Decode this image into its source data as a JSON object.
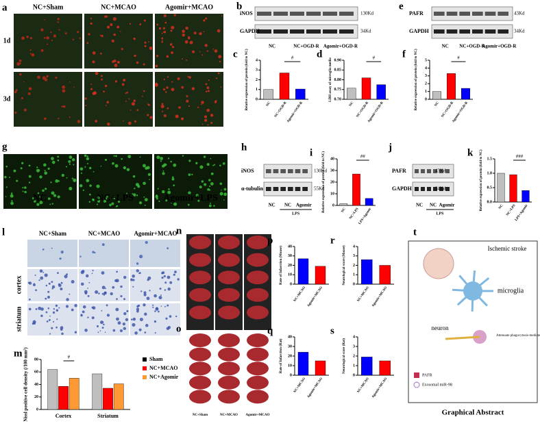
{
  "figure": {
    "a": {
      "letter": "a",
      "columns": [
        "NC+Sham",
        "NC+MCAO",
        "Agomir+MCAO"
      ],
      "rows": [
        "1d",
        "3d"
      ]
    },
    "b": {
      "letter": "b",
      "bands": [
        "iNOS",
        "GAPDH"
      ],
      "sizes": [
        "130Kd",
        "34Kd"
      ],
      "lanes": [
        "NC",
        "NC+OGD-R",
        "Agomir+OGD-R"
      ]
    },
    "e": {
      "letter": "e",
      "bands": [
        "PAFR",
        "GAPDH"
      ],
      "sizes": [
        "43Kd",
        "34Kd"
      ],
      "lanes": [
        "NC",
        "NC+OGD-R",
        "Agomir+OGD-R"
      ]
    },
    "g": {
      "letter": "g",
      "images": [
        "NC",
        "NC+LPS",
        "Agomir+LPS"
      ]
    },
    "h": {
      "letter": "h",
      "bands": [
        "iNOS",
        "α-tubulin"
      ],
      "sizes": [
        "130Kd",
        "55Kd"
      ],
      "lanes": [
        "NC",
        "NC",
        "Agomir"
      ],
      "treatment": "LPS"
    },
    "j": {
      "letter": "j",
      "bands": [
        "PAFR",
        "GAPDH"
      ],
      "sizes": [
        "43Kd",
        "34Kd"
      ],
      "lanes": [
        "NC",
        "NC",
        "Agomir"
      ],
      "treatment": "LPS"
    },
    "l": {
      "letter": "l",
      "columns": [
        "NC+Sham",
        "NC+MCAO",
        "Agomir+MCAO"
      ],
      "rows": [
        "cortex",
        "striatum"
      ]
    },
    "n": {
      "letter": "n",
      "columns": [
        "NC+Sham",
        "NC+MCAO",
        "Agomir+MCAO"
      ]
    },
    "o": {
      "letter": "o",
      "columns": [
        "NC+Sham",
        "NC+MCAO",
        "Agomir+MCAO"
      ]
    },
    "t": {
      "letter": "t",
      "title": "Ischemic stroke",
      "cells": [
        "microglia",
        "neuron"
      ],
      "effect": "Attenuate phagocytosis-mediated neuronal death",
      "legend": [
        "PAFR",
        "Exosomal miR-98"
      ],
      "caption": "Graphical Abstract"
    }
  },
  "chart_data": [
    {
      "label": "c",
      "type": "bar",
      "ylabel": "Relative expression of protein (fold to NC)",
      "categories": [
        "NC",
        "NC+OGD-R",
        "Agomir+OGD-R"
      ],
      "values": [
        1,
        2.7,
        1.05
      ],
      "colors": [
        "#bfbfbf",
        "#ff0000",
        "#0000ff"
      ],
      "ylim": [
        0,
        4
      ],
      "yticks": [
        0,
        1,
        2,
        3,
        4
      ],
      "significance": "#"
    },
    {
      "label": "d",
      "type": "bar",
      "ylabel": "LDH assay of microglia media",
      "categories": [
        "NC",
        "NC+OGD-R",
        "Agomir+OGD-R"
      ],
      "values": [
        0.757,
        0.81,
        0.775
      ],
      "colors": [
        "#bfbfbf",
        "#ff0000",
        "#0000ff"
      ],
      "ylim": [
        0.7,
        0.9
      ],
      "yticks": [
        {
          "value": 0.7,
          "label": "0.70"
        },
        {
          "value": 0.75,
          "label": "0.75"
        },
        {
          "value": 0.8,
          "label": "0.80"
        },
        {
          "value": 0.85,
          "label": "0.85"
        },
        {
          "value": 0.9,
          "label": "0.90"
        }
      ],
      "significance": "#"
    },
    {
      "label": "f",
      "type": "bar",
      "ylabel": "Relative expression of protein (fold to NC)",
      "categories": [
        "NC",
        "NC+OGD-R",
        "Agomir+OGD-R"
      ],
      "values": [
        1,
        3.3,
        1.4
      ],
      "colors": [
        "#bfbfbf",
        "#ff0000",
        "#0000ff"
      ],
      "ylim": [
        0,
        5
      ],
      "yticks": [
        0,
        1,
        2,
        3,
        4,
        5
      ],
      "significance": "#"
    },
    {
      "label": "i",
      "type": "bar",
      "ylabel": "Relative expression of protein (fold to NC)",
      "categories": [
        "NC",
        "NC+LPS",
        "LPS+Agomir"
      ],
      "values": [
        1.5,
        27,
        6
      ],
      "colors": [
        "#bfbfbf",
        "#ff0000",
        "#0000ff"
      ],
      "ylim": [
        0,
        40
      ],
      "yticks": [
        0,
        10,
        20,
        30,
        40
      ],
      "significance": "##"
    },
    {
      "label": "k",
      "type": "bar",
      "ylabel": "Relative expression of protein (fold to NC)",
      "categories": [
        "NC",
        "NC+LPS",
        "LPS+Agomir"
      ],
      "values": [
        1,
        0.95,
        0.4
      ],
      "colors": [
        "#bfbfbf",
        "#ff0000",
        "#0000ff"
      ],
      "ylim": [
        0,
        1.5
      ],
      "yticks": [
        {
          "value": 0,
          "label": "0.0"
        },
        {
          "value": 0.5,
          "label": "0.5"
        },
        {
          "value": 1,
          "label": "1.0"
        },
        {
          "value": 1.5,
          "label": "1.5"
        }
      ],
      "significance": "###"
    },
    {
      "label": "m",
      "type": "bar",
      "ylabel": "Nissl positive cell density (/100 mm²)",
      "categories": [
        "Cortex",
        "Striatum"
      ],
      "series": [
        {
          "name": "Sham",
          "color": "#bfbfbf",
          "values": [
            64,
            57
          ]
        },
        {
          "name": "NC+MCAO",
          "color": "#ff0000",
          "values": [
            37,
            34
          ]
        },
        {
          "name": "NC+Agomir",
          "color": "#ff9933",
          "values": [
            50,
            41
          ]
        }
      ],
      "ylim": [
        0,
        80
      ],
      "yticks": [
        0,
        20,
        40,
        60,
        80
      ],
      "significance": "#"
    },
    {
      "label": "p",
      "type": "bar",
      "ylabel": "Rate of Infarction (Mouse)",
      "categories": [
        "NC+MCAO",
        "Agomir+MCAO"
      ],
      "values": [
        27,
        19
      ],
      "colors": [
        "#0000ff",
        "#ff0000"
      ],
      "ylim": [
        0,
        40
      ],
      "yticks": [
        0,
        10,
        20,
        30,
        40
      ]
    },
    {
      "label": "r",
      "type": "bar",
      "ylabel": "Neurological score (Mouse)",
      "categories": [
        "NC+MCAO",
        "Agomir+MCAO"
      ],
      "values": [
        2.6,
        2.0
      ],
      "colors": [
        "#0000ff",
        "#ff0000"
      ],
      "ylim": [
        0,
        4
      ],
      "yticks": [
        0,
        1,
        2,
        3,
        4
      ]
    },
    {
      "label": "q",
      "type": "bar",
      "ylabel": "Rate of Infarction (Rat)",
      "categories": [
        "NC+MCAO",
        "Agomir+MCAO"
      ],
      "values": [
        24,
        15
      ],
      "colors": [
        "#0000ff",
        "#ff0000"
      ],
      "ylim": [
        0,
        40
      ],
      "yticks": [
        0,
        10,
        20,
        30,
        40
      ]
    },
    {
      "label": "s",
      "type": "bar",
      "ylabel": "Neurological score (Rat)",
      "categories": [
        "NC+MCAO",
        "Agomir+MCAO"
      ],
      "values": [
        1.9,
        1.5
      ],
      "colors": [
        "#0000ff",
        "#ff0000"
      ],
      "ylim": [
        0,
        4
      ],
      "yticks": [
        0,
        1,
        2,
        3,
        4
      ]
    }
  ]
}
